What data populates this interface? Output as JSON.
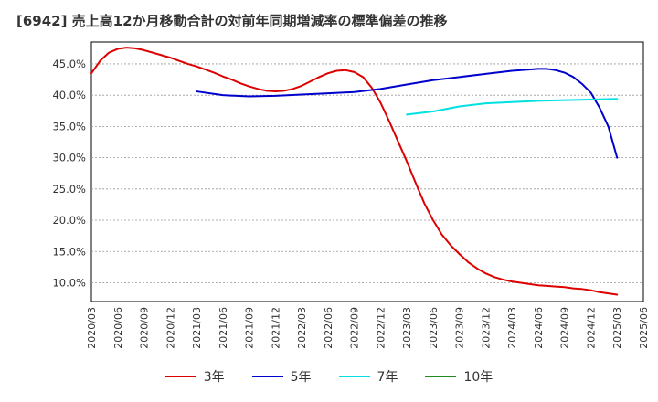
{
  "chart_data": {
    "type": "line",
    "title": "[6942]  売上高12か月移動合計の対前年同期増減率の標準偏差の推移",
    "x_ticks": [
      "2020/03",
      "2020/06",
      "2020/09",
      "2020/12",
      "2021/03",
      "2021/06",
      "2021/09",
      "2021/12",
      "2022/03",
      "2022/06",
      "2022/09",
      "2022/12",
      "2023/03",
      "2023/06",
      "2023/09",
      "2023/12",
      "2024/03",
      "2024/06",
      "2024/09",
      "2024/12",
      "2025/03",
      "2025/06"
    ],
    "y_ticks": [
      "10.0%",
      "15.0%",
      "20.0%",
      "25.0%",
      "30.0%",
      "35.0%",
      "40.0%",
      "45.0%"
    ],
    "ylim": [
      7.0,
      48.5
    ],
    "grid": true,
    "legend_position": "bottom",
    "series": [
      {
        "name": "3年",
        "color": "#dd0000",
        "x": [
          "2020/03",
          "2020/04",
          "2020/05",
          "2020/06",
          "2020/07",
          "2020/08",
          "2020/09",
          "2020/10",
          "2020/11",
          "2020/12",
          "2021/01",
          "2021/02",
          "2021/03",
          "2021/04",
          "2021/05",
          "2021/06",
          "2021/07",
          "2021/08",
          "2021/09",
          "2021/10",
          "2021/11",
          "2021/12",
          "2022/01",
          "2022/02",
          "2022/03",
          "2022/04",
          "2022/05",
          "2022/06",
          "2022/07",
          "2022/08",
          "2022/09",
          "2022/10",
          "2022/11",
          "2022/12",
          "2023/01",
          "2023/02",
          "2023/03",
          "2023/04",
          "2023/05",
          "2023/06",
          "2023/07",
          "2023/08",
          "2023/09",
          "2023/10",
          "2023/11",
          "2023/12",
          "2024/01",
          "2024/02",
          "2024/03",
          "2024/04",
          "2024/05",
          "2024/06",
          "2024/07",
          "2024/08",
          "2024/09",
          "2024/10",
          "2024/11",
          "2024/12",
          "2025/01",
          "2025/02",
          "2025/03"
        ],
        "values": [
          43.5,
          45.5,
          46.8,
          47.4,
          47.6,
          47.5,
          47.2,
          46.8,
          46.4,
          46.0,
          45.5,
          45.0,
          44.6,
          44.1,
          43.6,
          43.0,
          42.5,
          41.9,
          41.4,
          41.0,
          40.7,
          40.6,
          40.7,
          41.0,
          41.5,
          42.2,
          42.9,
          43.5,
          43.9,
          44.0,
          43.7,
          42.9,
          41.2,
          38.8,
          35.8,
          32.6,
          29.4,
          26.0,
          22.7,
          20.0,
          17.7,
          16.0,
          14.6,
          13.3,
          12.3,
          11.5,
          10.9,
          10.5,
          10.2,
          10.0,
          9.8,
          9.6,
          9.5,
          9.4,
          9.3,
          9.1,
          9.0,
          8.8,
          8.5,
          8.3,
          8.1
        ]
      },
      {
        "name": "5年",
        "color": "#0000cc",
        "x": [
          "2021/03",
          "2021/06",
          "2021/09",
          "2021/12",
          "2022/03",
          "2022/06",
          "2022/09",
          "2022/12",
          "2023/03",
          "2023/06",
          "2023/09",
          "2023/12",
          "2024/03",
          "2024/06",
          "2024/07",
          "2024/08",
          "2024/09",
          "2024/10",
          "2024/11",
          "2024/12",
          "2025/01",
          "2025/02",
          "2025/03"
        ],
        "values": [
          40.6,
          40.0,
          39.8,
          39.9,
          40.1,
          40.3,
          40.5,
          41.0,
          41.7,
          42.4,
          42.9,
          43.4,
          43.9,
          44.2,
          44.2,
          44.0,
          43.6,
          42.9,
          41.8,
          40.4,
          38.0,
          35.0,
          30.0
        ]
      },
      {
        "name": "7年",
        "color": "#00e0e0",
        "x": [
          "2023/03",
          "2023/06",
          "2023/09",
          "2023/12",
          "2024/03",
          "2024/06",
          "2024/09",
          "2024/12",
          "2025/03"
        ],
        "values": [
          36.9,
          37.4,
          38.2,
          38.7,
          38.9,
          39.1,
          39.2,
          39.3,
          39.4
        ]
      },
      {
        "name": "10年",
        "color": "#228b22",
        "x": [],
        "values": []
      }
    ]
  }
}
